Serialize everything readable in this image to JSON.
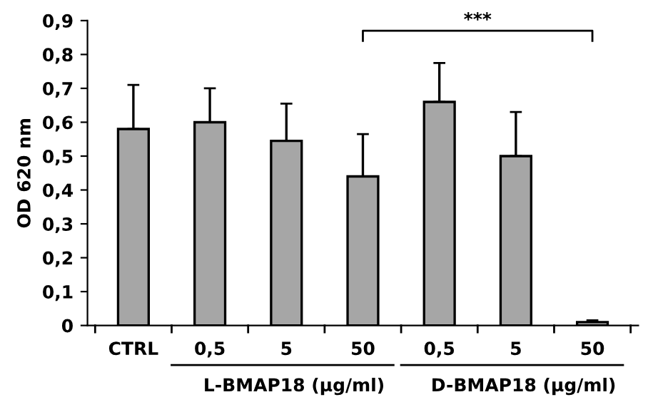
{
  "chart_data": {
    "type": "bar",
    "ylabel": "OD 620 nm",
    "categories": [
      "CTRL",
      "0,5",
      "5",
      "50",
      "0,5",
      "5",
      "50"
    ],
    "values": [
      0.58,
      0.6,
      0.545,
      0.44,
      0.66,
      0.5,
      0.01
    ],
    "errors": [
      [
        0.58,
        0.71
      ],
      [
        0.6,
        0.7
      ],
      [
        0.545,
        0.655
      ],
      [
        0.44,
        0.565
      ],
      [
        0.66,
        0.775
      ],
      [
        0.5,
        0.63
      ],
      [
        0.01,
        0.015
      ]
    ],
    "color": "#a6a6a6",
    "ylim": [
      0,
      0.9
    ],
    "yticks": [
      0,
      {
        "value": 0.1,
        "label": "0,1"
      },
      {
        "value": 0.2,
        "label": "0,2"
      },
      {
        "value": 0.3,
        "label": "0,3"
      },
      {
        "value": 0.4,
        "label": "0,4"
      },
      {
        "value": 0.5,
        "label": "0,5"
      },
      {
        "value": 0.6,
        "label": "0,6"
      },
      {
        "value": 0.7,
        "label": "0,7"
      },
      {
        "value": 0.8,
        "label": "0,8"
      },
      {
        "value": 0.9,
        "label": "0,9"
      }
    ],
    "grid": false,
    "legend": false,
    "annotations": [
      "L-BMAP18 (µg/ml)",
      "D-BMAP18 (µg/ml)",
      "***"
    ]
  }
}
